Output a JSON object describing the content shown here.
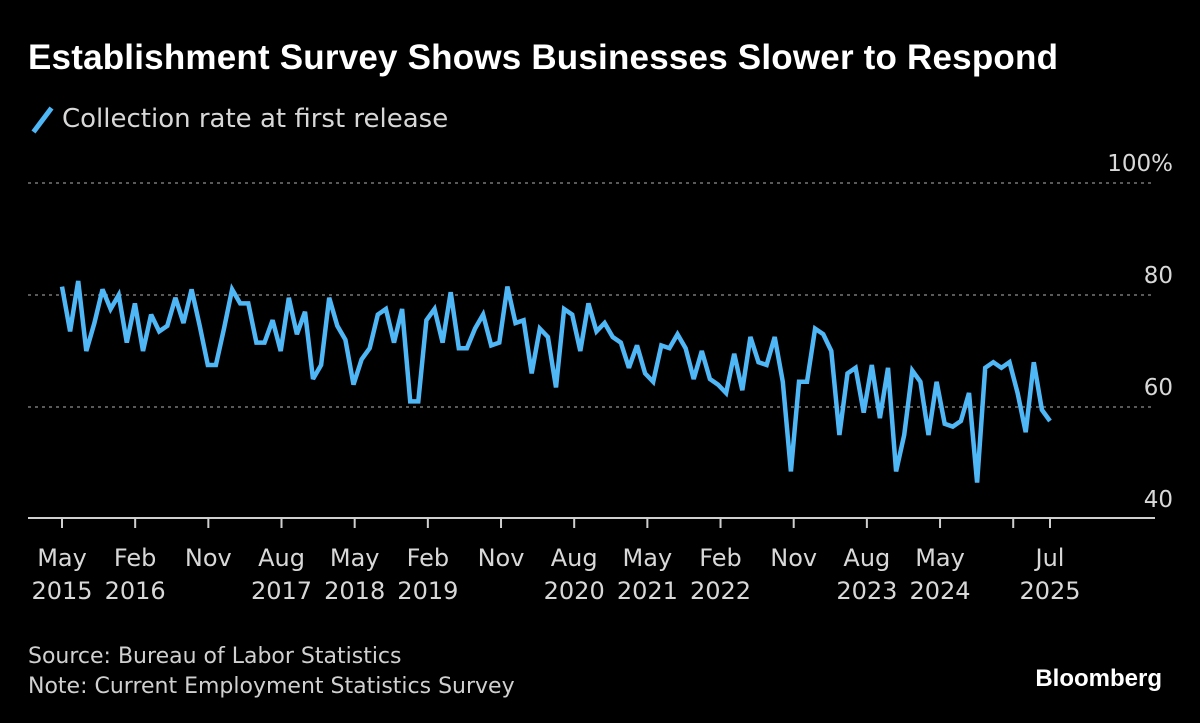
{
  "title": "Establishment Survey Shows Businesses Slower to Respond",
  "legend": {
    "label": "Collection rate at first release"
  },
  "source": "Source: Bureau of Labor Statistics",
  "note": "Note: Current Employment Statistics Survey",
  "brand": "Bloomberg",
  "colors": {
    "line": "#4fb7f5",
    "background": "#000000",
    "grid": "#777777",
    "text": "#d8d8d8"
  },
  "chart_data": {
    "type": "line",
    "title": "Establishment Survey Shows Businesses Slower to Respond",
    "xlabel": "",
    "ylabel": "",
    "ylim": [
      37,
      100
    ],
    "yticks": [
      {
        "value": 100,
        "label": "100%"
      },
      {
        "value": 80,
        "label": "80"
      },
      {
        "value": 60,
        "label": "60"
      },
      {
        "value": 40,
        "label": "40"
      }
    ],
    "grid_values": [
      100,
      80,
      60
    ],
    "x_start": "May 2015",
    "x_end_months": 125,
    "xticks": [
      {
        "month": 0,
        "lines": [
          "May",
          "2015"
        ]
      },
      {
        "month": 9,
        "lines": [
          "Feb",
          "2016"
        ]
      },
      {
        "month": 18,
        "lines": [
          "Nov",
          ""
        ]
      },
      {
        "month": 27,
        "lines": [
          "Aug",
          "2017"
        ]
      },
      {
        "month": 36,
        "lines": [
          "May",
          "2018"
        ]
      },
      {
        "month": 45,
        "lines": [
          "Feb",
          "2019"
        ]
      },
      {
        "month": 54,
        "lines": [
          "Nov",
          ""
        ]
      },
      {
        "month": 63,
        "lines": [
          "Aug",
          "2020"
        ]
      },
      {
        "month": 72,
        "lines": [
          "May",
          "2021"
        ]
      },
      {
        "month": 81,
        "lines": [
          "Feb",
          "2022"
        ]
      },
      {
        "month": 90,
        "lines": [
          "Nov",
          ""
        ]
      },
      {
        "month": 99,
        "lines": [
          "Aug",
          "2023"
        ]
      },
      {
        "month": 108,
        "lines": [
          "May",
          "2024"
        ]
      },
      {
        "month": 117,
        "lines": [
          "",
          ""
        ]
      },
      {
        "month": 122,
        "lines": [
          "Jul",
          "2025"
        ]
      }
    ],
    "series": [
      {
        "name": "Collection rate at first release",
        "values": [
          81.5,
          73.5,
          82.5,
          70,
          75,
          81,
          77.5,
          80,
          71.5,
          78.5,
          70,
          76.5,
          73.5,
          74.5,
          79.5,
          75,
          81,
          74.5,
          67.5,
          67.5,
          74,
          81,
          78.5,
          78.5,
          71.5,
          71.5,
          75.5,
          70,
          79.5,
          73,
          77,
          65,
          67.5,
          79.5,
          74.5,
          72,
          64,
          68.5,
          70.5,
          76.5,
          77.5,
          71.5,
          77.5,
          61,
          61,
          75.5,
          77.5,
          71.5,
          80.5,
          70.5,
          70.5,
          74,
          76.5,
          71,
          71.5,
          81.5,
          75,
          75.5,
          66,
          74,
          72.5,
          63.5,
          77.5,
          76.5,
          70,
          78.5,
          73.5,
          75,
          72.5,
          71.5,
          67,
          71,
          66,
          64.5,
          71,
          70.5,
          73,
          70.5,
          65,
          70,
          65,
          64,
          62.5,
          69.5,
          63,
          72.5,
          68,
          67.5,
          72.5,
          64.5,
          48.5,
          64.5,
          64.5,
          74,
          73,
          70,
          55,
          66,
          67,
          59,
          67.5,
          58,
          67,
          48.5,
          55,
          66.5,
          64.5,
          55,
          64.5,
          57,
          56.5,
          57.5,
          62.5,
          46.5,
          67,
          68,
          67,
          68,
          62.5,
          55.5,
          68,
          59.5,
          57.5
        ]
      }
    ]
  }
}
